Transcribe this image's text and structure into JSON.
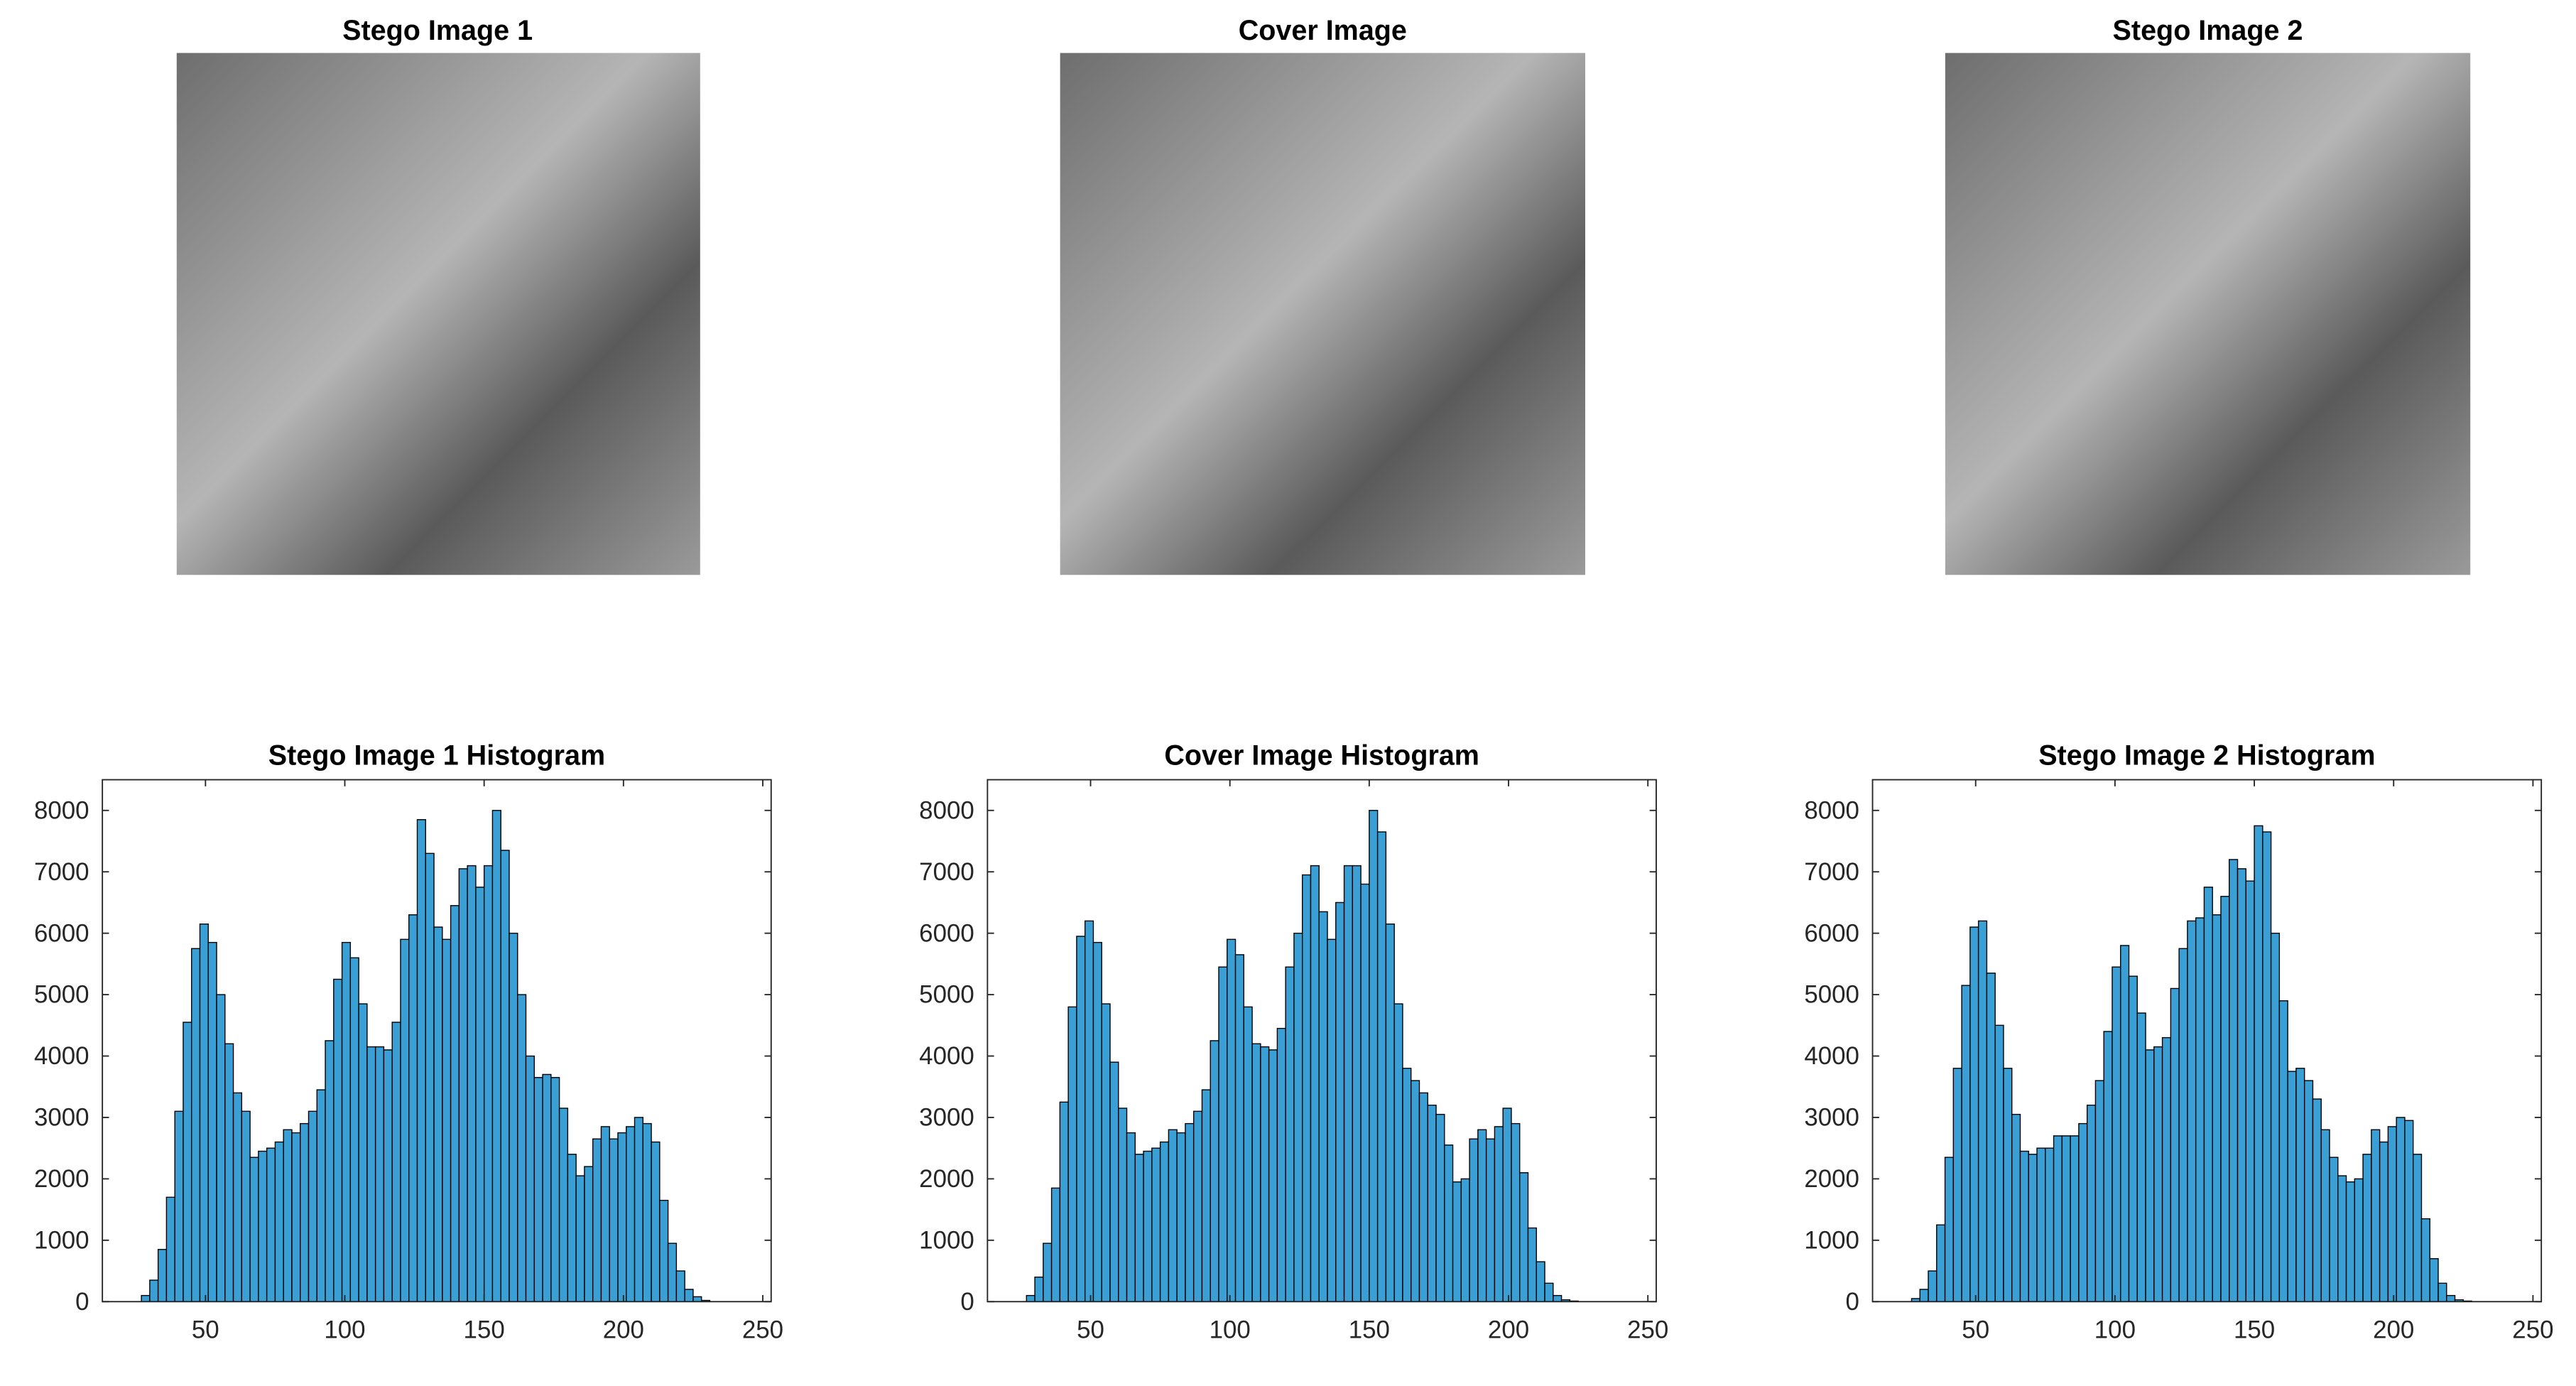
{
  "images": [
    {
      "title": "Stego Image 1"
    },
    {
      "title": "Cover Image"
    },
    {
      "title": "Stego Image 2"
    }
  ],
  "chart_data": [
    {
      "type": "histogram",
      "title": "Stego Image 1 Histogram",
      "color": "#3a9fd4",
      "bins": [
        27,
        30,
        33,
        36,
        39,
        42,
        45,
        48,
        51,
        54,
        57,
        60,
        63,
        66,
        69,
        72,
        75,
        78,
        81,
        84,
        87,
        90,
        93,
        96,
        99,
        102,
        105,
        108,
        111,
        114,
        117,
        120,
        123,
        126,
        129,
        132,
        135,
        138,
        141,
        144,
        147,
        150,
        153,
        156,
        159,
        162,
        165,
        168,
        171,
        174,
        177,
        180,
        183,
        186,
        189,
        192,
        195,
        198,
        201,
        204,
        207,
        210,
        213,
        216,
        219,
        222,
        225,
        228,
        231
      ],
      "values": [
        100,
        350,
        850,
        1700,
        3100,
        4550,
        5750,
        6150,
        5850,
        5000,
        4200,
        3400,
        3100,
        2350,
        2450,
        2500,
        2600,
        2800,
        2750,
        2900,
        3100,
        3450,
        4250,
        5250,
        5850,
        5600,
        4850,
        4150,
        4150,
        4100,
        4550,
        5900,
        6300,
        7850,
        7300,
        6100,
        5900,
        6450,
        7050,
        7100,
        6750,
        7100,
        8000,
        7350,
        6000,
        5000,
        4000,
        3650,
        3700,
        3650,
        3150,
        2400,
        2050,
        2200,
        2650,
        2850,
        2650,
        2750,
        2850,
        3000,
        2900,
        2600,
        1650,
        950,
        500,
        200,
        80,
        20
      ],
      "xlim": [
        13,
        253
      ],
      "xticks": [
        50,
        100,
        150,
        200,
        250
      ],
      "ylim": [
        0,
        8500
      ],
      "yticks": [
        0,
        1000,
        2000,
        3000,
        4000,
        5000,
        6000,
        7000,
        8000
      ]
    },
    {
      "type": "histogram",
      "title": "Cover Image Histogram",
      "color": "#3a9fd4",
      "bins": [
        27,
        30,
        33,
        36,
        39,
        42,
        45,
        48,
        51,
        54,
        57,
        60,
        63,
        66,
        69,
        72,
        75,
        78,
        81,
        84,
        87,
        90,
        93,
        96,
        99,
        102,
        105,
        108,
        111,
        114,
        117,
        120,
        123,
        126,
        129,
        132,
        135,
        138,
        141,
        144,
        147,
        150,
        153,
        156,
        159,
        162,
        165,
        168,
        171,
        174,
        177,
        180,
        183,
        186,
        189,
        192,
        195,
        198,
        201,
        204,
        207,
        210,
        213,
        216,
        219,
        222,
        225,
        228,
        231
      ],
      "values": [
        100,
        400,
        950,
        1850,
        3250,
        4800,
        5950,
        6200,
        5850,
        4850,
        3900,
        3150,
        2750,
        2400,
        2450,
        2500,
        2600,
        2800,
        2750,
        2900,
        3100,
        3450,
        4250,
        5450,
        5900,
        5650,
        4800,
        4200,
        4150,
        4100,
        4450,
        5450,
        6000,
        6950,
        7100,
        6350,
        5900,
        6500,
        7100,
        7100,
        6800,
        8000,
        7650,
        6150,
        4850,
        3800,
        3600,
        3400,
        3200,
        3050,
        2550,
        1950,
        2000,
        2650,
        2800,
        2650,
        2850,
        3150,
        2900,
        2100,
        1200,
        650,
        300,
        100,
        30,
        10,
        0,
        0
      ],
      "xlim": [
        13,
        253
      ],
      "xticks": [
        50,
        100,
        150,
        200,
        250
      ],
      "ylim": [
        0,
        8500
      ],
      "yticks": [
        0,
        1000,
        2000,
        3000,
        4000,
        5000,
        6000,
        7000,
        8000
      ]
    },
    {
      "type": "histogram",
      "title": "Stego Image 2 Histogram",
      "color": "#3a9fd4",
      "bins": [
        27,
        30,
        33,
        36,
        39,
        42,
        45,
        48,
        51,
        54,
        57,
        60,
        63,
        66,
        69,
        72,
        75,
        78,
        81,
        84,
        87,
        90,
        93,
        96,
        99,
        102,
        105,
        108,
        111,
        114,
        117,
        120,
        123,
        126,
        129,
        132,
        135,
        138,
        141,
        144,
        147,
        150,
        153,
        156,
        159,
        162,
        165,
        168,
        171,
        174,
        177,
        180,
        183,
        186,
        189,
        192,
        195,
        198,
        201,
        204,
        207,
        210,
        213,
        216,
        219,
        222,
        225,
        228,
        231
      ],
      "values": [
        50,
        200,
        500,
        1250,
        2350,
        3800,
        5150,
        6100,
        6200,
        5350,
        4500,
        3800,
        3050,
        2450,
        2400,
        2500,
        2500,
        2700,
        2700,
        2700,
        2900,
        3200,
        3600,
        4400,
        5450,
        5800,
        5300,
        4700,
        4100,
        4150,
        4300,
        5100,
        5750,
        6200,
        6250,
        6750,
        6300,
        6600,
        7200,
        7050,
        6850,
        7750,
        7650,
        6000,
        4900,
        3750,
        3800,
        3600,
        3300,
        2800,
        2350,
        2050,
        1950,
        2000,
        2400,
        2800,
        2600,
        2850,
        3000,
        2950,
        2400,
        1350,
        700,
        300,
        100,
        30,
        10,
        0
      ],
      "xlim": [
        13,
        253
      ],
      "xticks": [
        50,
        100,
        150,
        200,
        250
      ],
      "ylim": [
        0,
        8500
      ],
      "yticks": [
        0,
        1000,
        2000,
        3000,
        4000,
        5000,
        6000,
        7000,
        8000
      ]
    }
  ]
}
